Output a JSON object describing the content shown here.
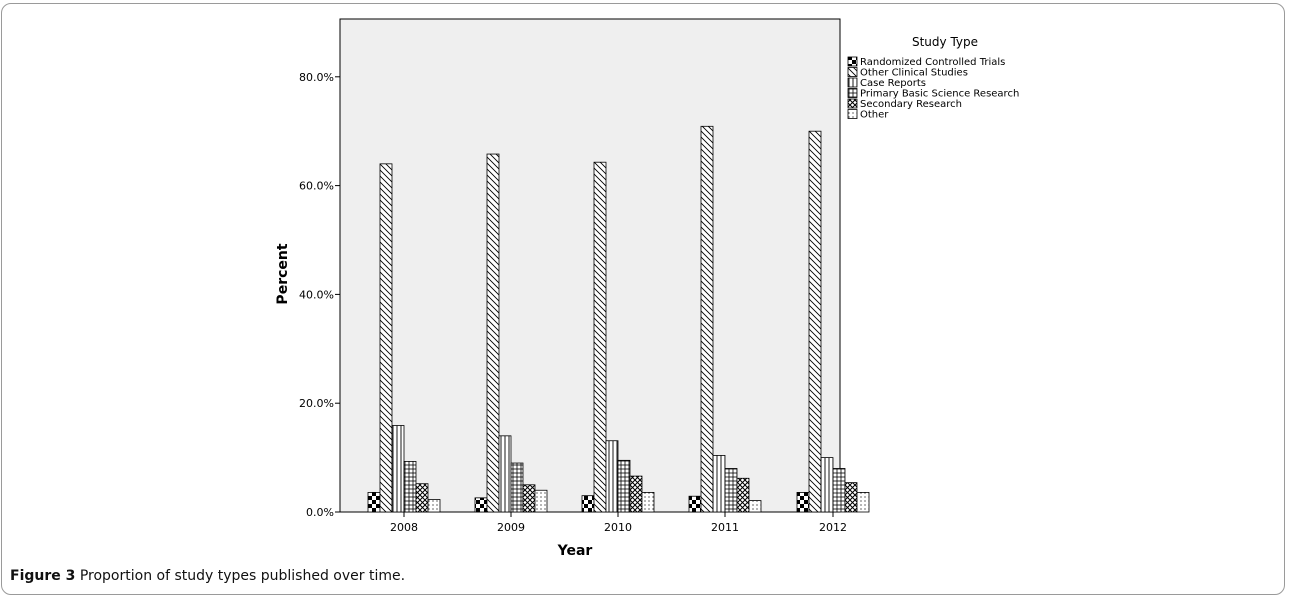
{
  "caption": {
    "label": "Figure 3",
    "text": "Proportion of study types published over time."
  },
  "chart_data": {
    "type": "bar",
    "title": "",
    "xlabel": "Year",
    "ylabel": "Percent",
    "ylim": [
      0,
      88
    ],
    "yticks": [
      {
        "value": 0,
        "label": "0.0%"
      },
      {
        "value": 20,
        "label": "20.0%"
      },
      {
        "value": 40,
        "label": "40.0%"
      },
      {
        "value": 60,
        "label": "60.0%"
      },
      {
        "value": 80,
        "label": "80.0%"
      }
    ],
    "categories": [
      "2008",
      "2009",
      "2010",
      "2011",
      "2012"
    ],
    "legend_title": "Study Type",
    "legend_position": "right",
    "grid": false,
    "series": [
      {
        "name": "Randomized Controlled Trials",
        "pattern": "checker",
        "values": [
          3.6,
          2.6,
          3.0,
          2.9,
          3.6
        ]
      },
      {
        "name": "Other Clinical Studies",
        "pattern": "diagonal",
        "values": [
          64.0,
          65.8,
          64.3,
          70.9,
          70.0
        ]
      },
      {
        "name": "Case Reports",
        "pattern": "vertical",
        "values": [
          15.9,
          14.0,
          13.1,
          10.4,
          10.0
        ]
      },
      {
        "name": "Primary Basic Science Research",
        "pattern": "grid",
        "values": [
          9.3,
          9.0,
          9.5,
          8.0,
          8.0
        ]
      },
      {
        "name": "Secondary Research",
        "pattern": "crosshatch",
        "values": [
          5.2,
          5.0,
          6.6,
          6.2,
          5.4
        ]
      },
      {
        "name": "Other",
        "pattern": "dots",
        "values": [
          2.3,
          4.0,
          3.6,
          2.1,
          3.6
        ]
      }
    ]
  }
}
